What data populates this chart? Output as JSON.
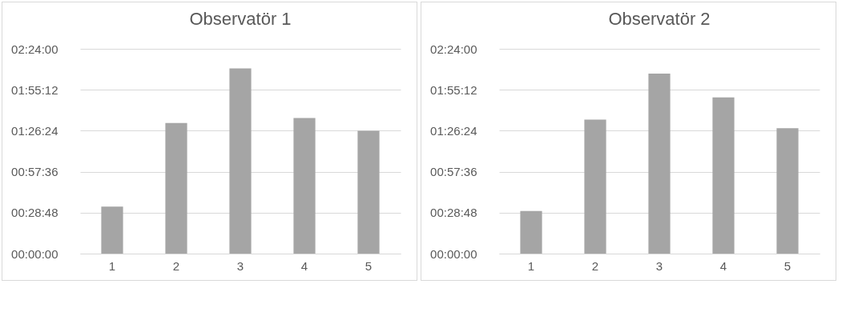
{
  "chart_data": [
    {
      "type": "bar",
      "title": "Observatör 1",
      "categories": [
        "1",
        "2",
        "3",
        "4",
        "5"
      ],
      "values": [
        0.55,
        1.53,
        2.17,
        1.59,
        1.44
      ],
      "color": "#a5a5a5",
      "ylim": [
        0,
        2.4
      ],
      "yticks": [
        {
          "value": 0,
          "label": "00:00:00"
        },
        {
          "value": 0.48,
          "label": "00:28:48"
        },
        {
          "value": 0.96,
          "label": "00:57:36"
        },
        {
          "value": 1.44,
          "label": "01:26:24"
        },
        {
          "value": 1.92,
          "label": "01:55:12"
        },
        {
          "value": 2.4,
          "label": "02:24:00"
        }
      ],
      "grid": "y"
    },
    {
      "type": "bar",
      "title": "Observatör 2",
      "categories": [
        "1",
        "2",
        "3",
        "4",
        "5"
      ],
      "values": [
        0.5,
        1.57,
        2.11,
        1.83,
        1.47
      ],
      "color": "#a5a5a5",
      "ylim": [
        0,
        2.4
      ],
      "yticks": [
        {
          "value": 0,
          "label": "00:00:00"
        },
        {
          "value": 0.48,
          "label": "00:28:48"
        },
        {
          "value": 0.96,
          "label": "00:57:36"
        },
        {
          "value": 1.44,
          "label": "01:26:24"
        },
        {
          "value": 1.92,
          "label": "01:55:12"
        },
        {
          "value": 2.4,
          "label": "02:24:00"
        }
      ],
      "grid": "y"
    }
  ]
}
